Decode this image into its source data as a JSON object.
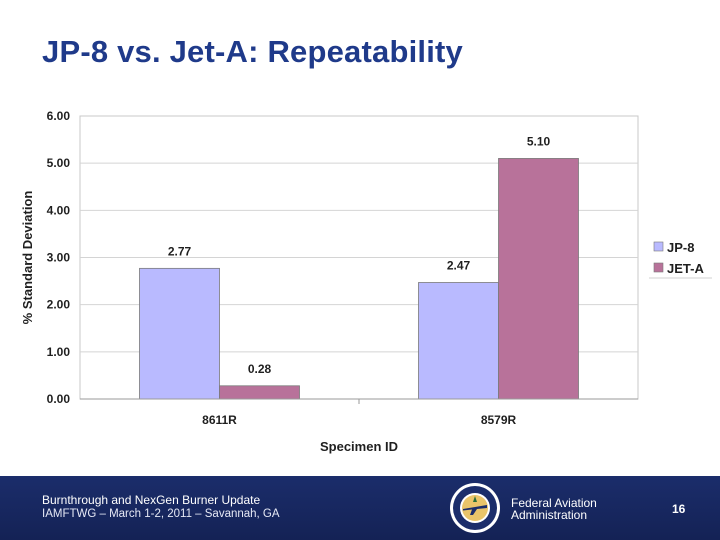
{
  "slide": {
    "title": "JP-8 vs. Jet-A:  Repeatability"
  },
  "chart_data": {
    "type": "bar",
    "title": "",
    "xlabel": "Specimen ID",
    "ylabel": "% Standard Deviation",
    "ylim": [
      0,
      6
    ],
    "yticks": [
      "0.00",
      "1.00",
      "2.00",
      "3.00",
      "4.00",
      "5.00",
      "6.00"
    ],
    "categories": [
      "8611R",
      "8579R"
    ],
    "series": [
      {
        "name": "JP-8",
        "values": [
          2.77,
          2.47
        ],
        "labels": [
          "2.77",
          "2.47"
        ],
        "color": "#b9baff"
      },
      {
        "name": "JET-A",
        "values": [
          0.28,
          5.1
        ],
        "labels": [
          "0.28",
          "5.10"
        ],
        "color": "#b8729a"
      }
    ],
    "grid": true,
    "legend": "right"
  },
  "footer": {
    "title": "Burnthrough and NexGen Burner Update",
    "subtitle": "IAMFTWG – March 1-2, 2011 – Savannah, GA",
    "agency_line1": "Federal Aviation",
    "agency_line2": "Administration",
    "page": "16",
    "background": "#1b2d6b"
  }
}
